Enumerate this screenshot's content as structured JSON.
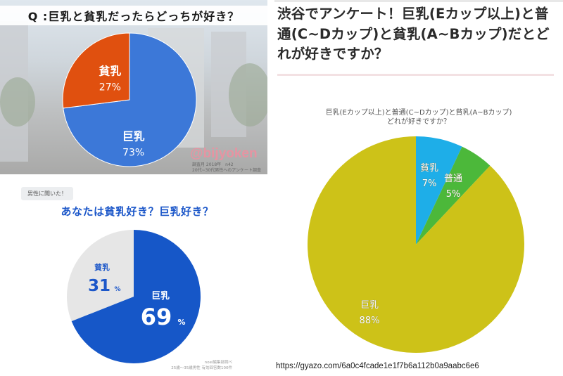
{
  "chart_data": [
    {
      "type": "pie",
      "title": "Q :巨乳と貧乳だったらどっちが好き？",
      "categories": [
        "巨乳",
        "貧乳"
      ],
      "values": [
        73,
        27
      ],
      "labels": [
        "73%",
        "27%"
      ],
      "colors": [
        "#3c78d8",
        "#e0500f"
      ],
      "watermark": "@bijyoken",
      "footnote_lines": [
        "調査月 2018年　n42",
        "20代~30代男性へのアンケート調査"
      ]
    },
    {
      "type": "pie",
      "badge": "男性に聞いた！",
      "title": "あなたは貧乳好き？巨乳好き？",
      "categories": [
        "巨乳",
        "貧乳"
      ],
      "values": [
        69,
        31
      ],
      "labels": [
        "69",
        "31"
      ],
      "unit": "%",
      "colors": [
        "#1657c8",
        "#e6e6e6"
      ],
      "label_colors": [
        "#ffffff",
        "#1c57c9"
      ],
      "footnote_lines": [
        "noel編集部調べ",
        "25歳〜35歳男性 有効回答数100件"
      ]
    },
    {
      "type": "pie",
      "title_lines": [
        "巨乳(Eカップ以上)と普通(C~Dカップ)と貧乳(A~Bカップ)",
        "どれが好きですか？"
      ],
      "categories": [
        "貧乳",
        "普通",
        "巨乳"
      ],
      "values": [
        7,
        5,
        88
      ],
      "labels": [
        "7%",
        "5%",
        "88%"
      ],
      "colors": [
        "#1eaee8",
        "#4cb83a",
        "#cdc218"
      ]
    }
  ],
  "right_panel": {
    "headline": "渋谷でアンケート！巨乳(Eカップ以上)と普通(C~Dカップ)と貧乳(A~Bカップ)だとどれが好きですか？",
    "url": "https://gyazo.com/6a0c4fcade1e1f7b6a112b0a9aabc6e6"
  }
}
